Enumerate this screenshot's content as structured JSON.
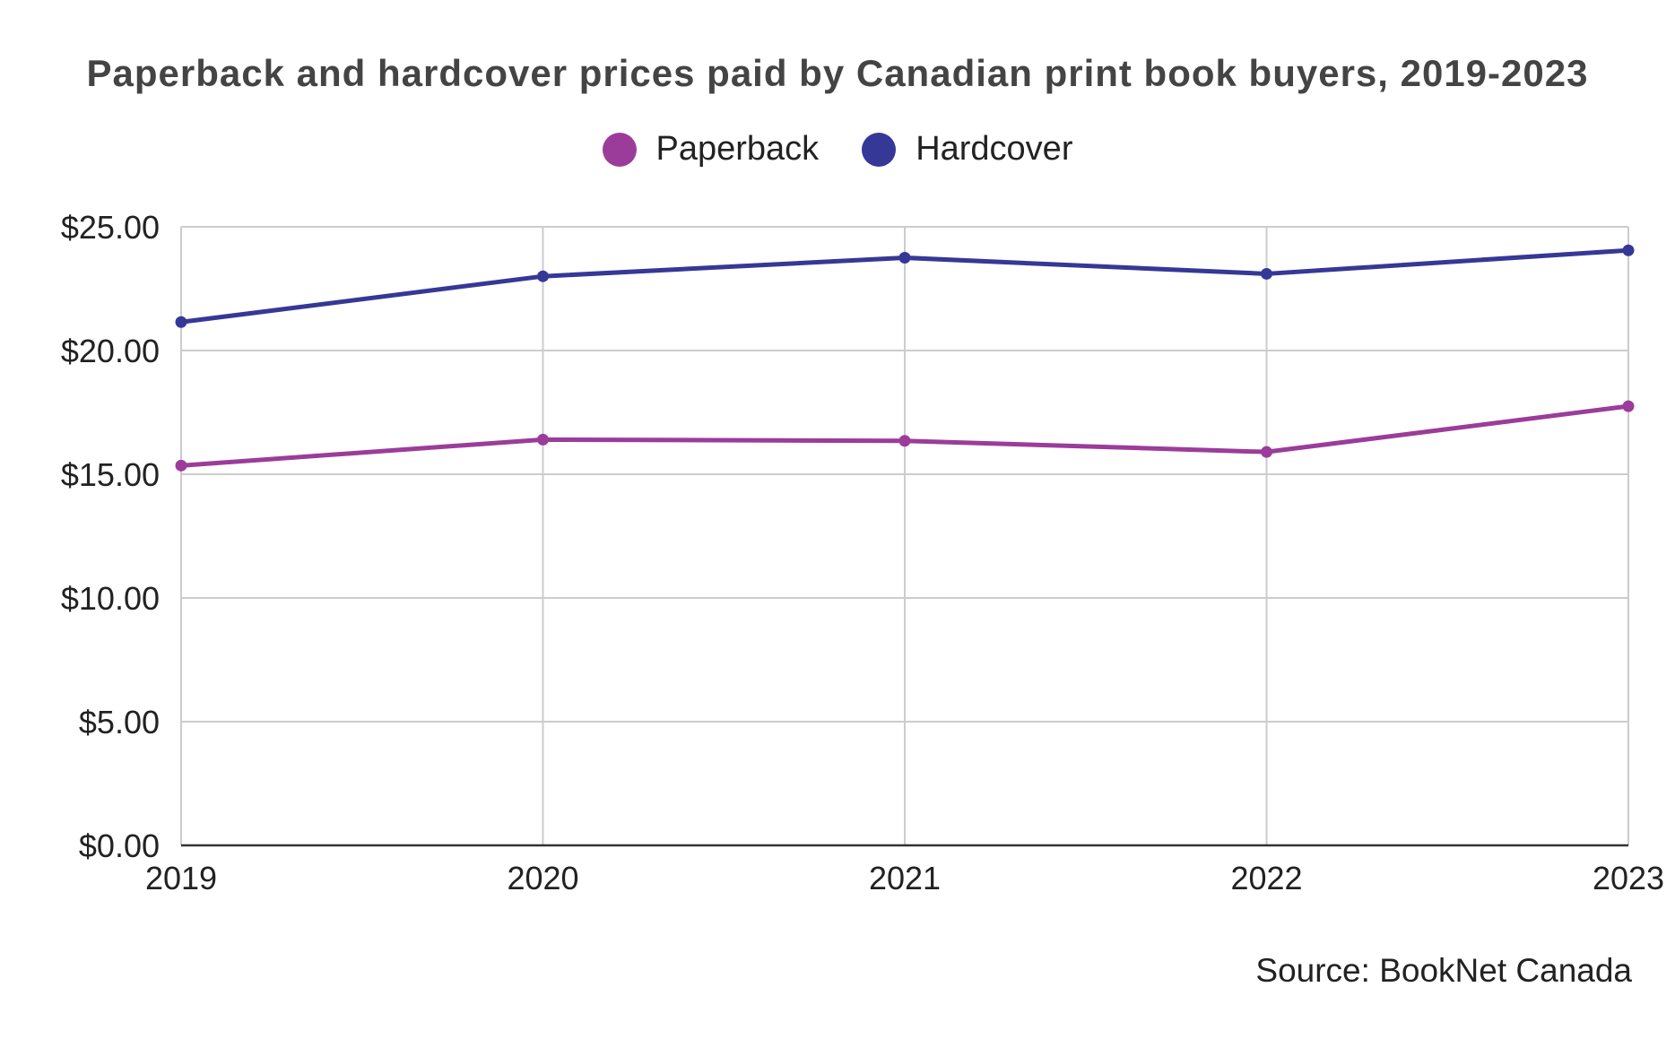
{
  "chart_data": {
    "type": "line",
    "title": "Paperback and hardcover prices paid by Canadian print book buyers, 2019-2023",
    "x": [
      "2019",
      "2020",
      "2021",
      "2022",
      "2023"
    ],
    "xlabel": "",
    "ylabel": "",
    "ylim": [
      0,
      25
    ],
    "yticks": [
      0,
      5,
      10,
      15,
      20,
      25
    ],
    "ytick_labels": [
      "$0.00",
      "$5.00",
      "$10.00",
      "$15.00",
      "$20.00",
      "$25.00"
    ],
    "grid": true,
    "legend_position": "top-center",
    "series": [
      {
        "name": "Paperback",
        "color": "#9b3c9b",
        "values": [
          15.35,
          16.4,
          16.35,
          15.9,
          17.75
        ]
      },
      {
        "name": "Hardcover",
        "color": "#353896",
        "values": [
          21.15,
          23.0,
          23.75,
          23.1,
          24.05
        ]
      }
    ],
    "source": "Source: BookNet Canada"
  }
}
